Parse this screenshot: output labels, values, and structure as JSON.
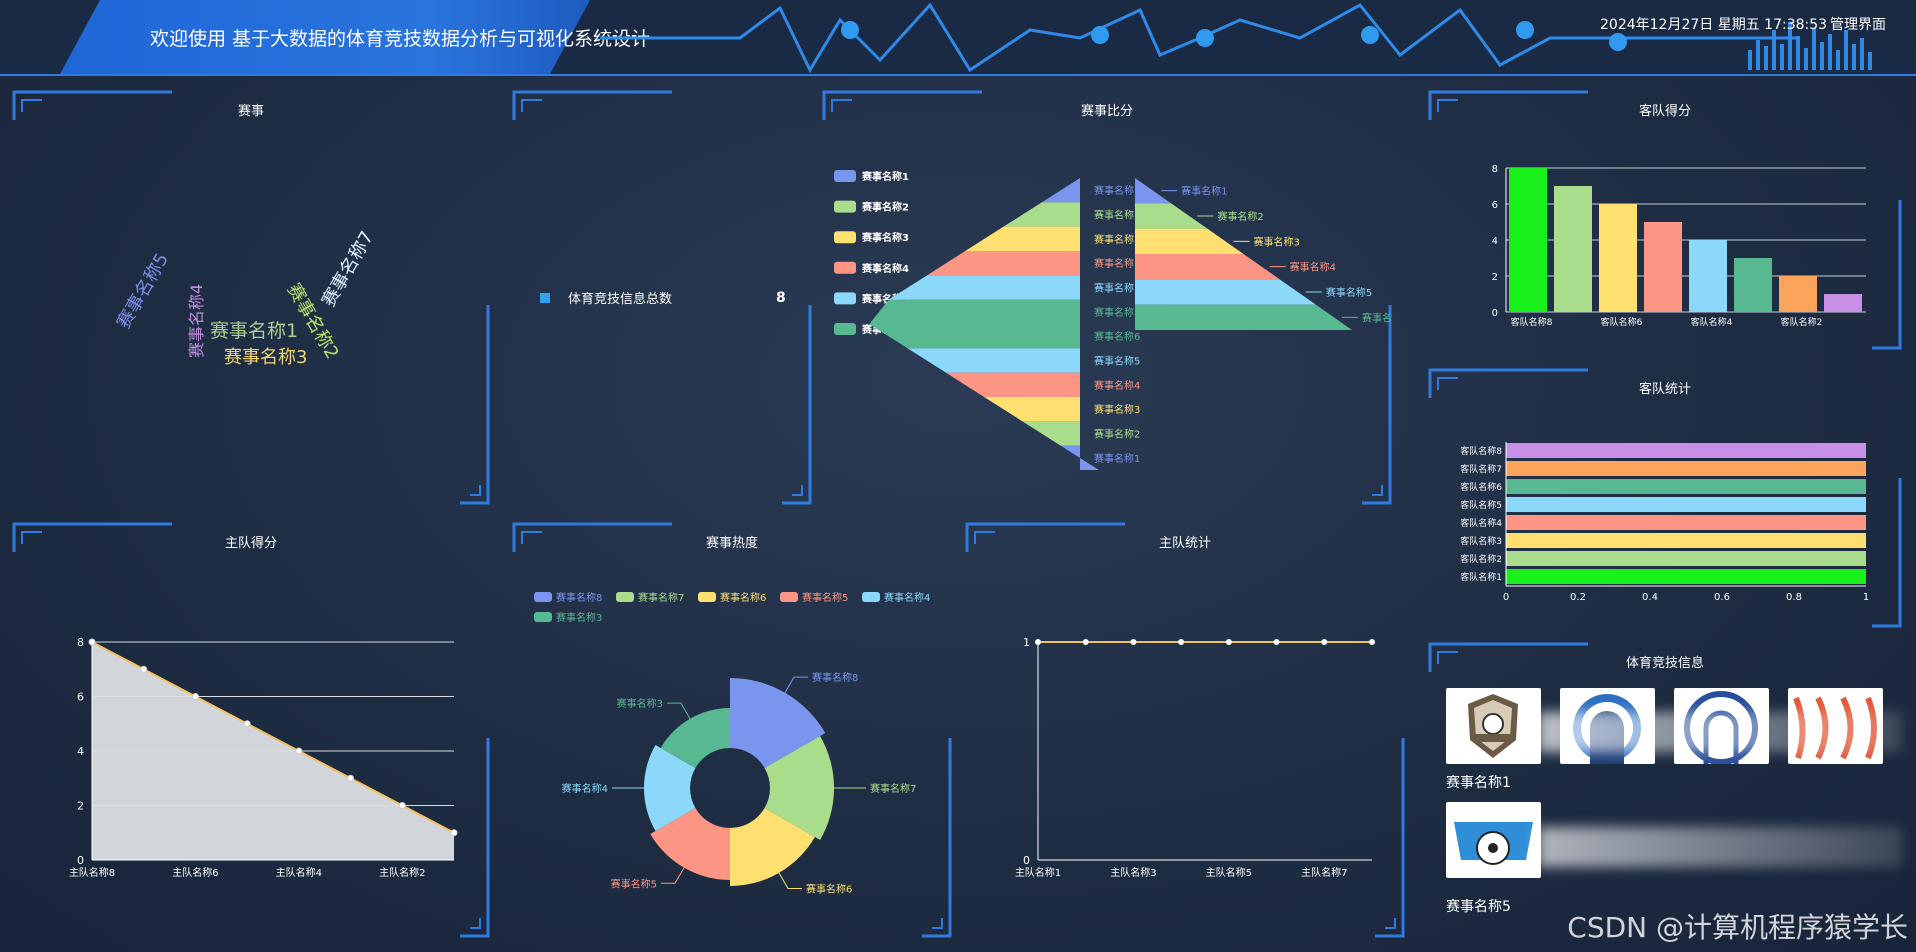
{
  "header": {
    "title": "欢迎使用 基于大数据的体育竞技数据分析与可视化系统设计",
    "datetime": "2024年12月27日 星期五 17:38:53",
    "admin_link": "管理界面"
  },
  "panels": {
    "events": "赛事",
    "info_total": "",
    "event_ratio": "赛事比分",
    "away_score": "客队得分",
    "away_stats": "客队统计",
    "home_score": "主队得分",
    "event_heat": "赛事热度",
    "home_stats": "主队统计",
    "sports_info": "体育竞技信息"
  },
  "word_cloud": [
    {
      "text": "赛事名称5",
      "color": "#7b8fe8"
    },
    {
      "text": "赛事名称4",
      "color": "#c38fe0"
    },
    {
      "text": "赛事名称1",
      "color": "#a9d18e"
    },
    {
      "text": "赛事名称3",
      "color": "#f5d66e"
    },
    {
      "text": "赛事名称2",
      "color": "#b7e06b"
    },
    {
      "text": "赛事名称7",
      "color": "#e0f1ff"
    }
  ],
  "stat": {
    "label": "体育竞技信息总数",
    "value": "8"
  },
  "funnel": {
    "legend": [
      "赛事名称1",
      "赛事名称2",
      "赛事名称3",
      "赛事名称4",
      "赛事名称5",
      "赛事名称6"
    ],
    "left_labels": [
      "赛事名称",
      "赛事名称",
      "赛事名称",
      "赛事名称",
      "赛事名称",
      "赛事名称",
      "赛事名称6",
      "赛事名称5",
      "赛事名称4",
      "赛事名称3",
      "赛事名称2",
      "赛事名称1"
    ],
    "right_labels": [
      "赛事名称1",
      "赛事名称2",
      "赛事名称3",
      "赛事名称4",
      "赛事名称5",
      "赛事名"
    ],
    "colors": [
      "#7a95ee",
      "#a9dd8c",
      "#fde070",
      "#fc9584",
      "#8bd8fb",
      "#58b891"
    ]
  },
  "donut_legend": [
    "赛事名称8",
    "赛事名称7",
    "赛事名称6",
    "赛事名称5",
    "赛事名称4",
    "赛事名称3"
  ],
  "donut_labels": [
    "赛事名称8",
    "赛事名称7",
    "赛事名称6",
    "赛事名称5",
    "赛事名称4",
    "赛事名称3"
  ],
  "chart_data": [
    {
      "id": "away_score",
      "type": "bar",
      "title": "客队得分",
      "categories": [
        "客队名称8",
        "客队名称7",
        "客队名称6",
        "客队名称5",
        "客队名称4",
        "客队名称3",
        "客队名称2",
        "客队名称1"
      ],
      "tick_labels": [
        "客队名称8",
        "客队名称6",
        "客队名称4",
        "客队名称2"
      ],
      "values": [
        8,
        7,
        6,
        5,
        4,
        3,
        2,
        1
      ],
      "colors": [
        "#19f21a",
        "#a9dd8c",
        "#fde070",
        "#fc9584",
        "#8bd8fb",
        "#58b891",
        "#fda45c",
        "#c78fe6"
      ],
      "ylim": [
        0,
        8
      ],
      "yticks": [
        "0",
        "2",
        "4",
        "6",
        "8"
      ],
      "grid": true
    },
    {
      "id": "away_stats",
      "type": "bar",
      "title": "客队统计",
      "orientation": "horizontal",
      "categories": [
        "客队名称8",
        "客队名称7",
        "客队名称6",
        "客队名称5",
        "客队名称4",
        "客队名称3",
        "客队名称2",
        "客队名称1"
      ],
      "values": [
        1,
        1,
        1,
        1,
        1,
        1,
        1,
        1
      ],
      "colors": [
        "#c78fe6",
        "#fda45c",
        "#58b891",
        "#8bd8fb",
        "#fc9584",
        "#fde070",
        "#a9dd8c",
        "#19f21a"
      ],
      "xlim": [
        0,
        1
      ],
      "xticks": [
        "0",
        "0.2",
        "0.4",
        "0.6",
        "0.8",
        "1"
      ]
    },
    {
      "id": "home_score",
      "type": "area",
      "title": "主队得分",
      "categories": [
        "主队名称8",
        "主队名称7",
        "主队名称6",
        "主队名称5",
        "主队名称4",
        "主队名称3",
        "主队名称2",
        "主队名称1"
      ],
      "tick_labels": [
        "主队名称8",
        "主队名称6",
        "主队名称4",
        "主队名称2"
      ],
      "values": [
        8,
        7,
        6,
        5,
        4,
        3,
        2,
        1
      ],
      "ylim": [
        0,
        8
      ],
      "yticks": [
        "0",
        "2",
        "4",
        "6",
        "8"
      ],
      "grid": true
    },
    {
      "id": "event_heat",
      "type": "pie",
      "title": "赛事热度",
      "categories": [
        "赛事名称8",
        "赛事名称7",
        "赛事名称6",
        "赛事名称5",
        "赛事名称4",
        "赛事名称3"
      ],
      "values": [
        8,
        7,
        6,
        5,
        4,
        3
      ],
      "colors": [
        "#7a95ee",
        "#a9dd8c",
        "#fde070",
        "#fc9584",
        "#8bd8fb",
        "#58b891"
      ]
    },
    {
      "id": "home_stats",
      "type": "line",
      "title": "主队统计",
      "categories": [
        "主队名称1",
        "主队名称2",
        "主队名称3",
        "主队名称4",
        "主队名称5",
        "主队名称6",
        "主队名称7",
        "主队名称8"
      ],
      "tick_labels": [
        "主队名称1",
        "主队名称3",
        "主队名称5",
        "主队名称7"
      ],
      "values": [
        1,
        1,
        1,
        1,
        1,
        1,
        1,
        1
      ],
      "ylim": [
        0,
        1
      ],
      "yticks": [
        "0",
        "1"
      ]
    }
  ],
  "sports_info": {
    "items": [
      {
        "caption": "赛事名称1"
      },
      {
        "caption": "赛事名称5"
      }
    ]
  },
  "watermark": "CSDN @计算机程序猿学长"
}
